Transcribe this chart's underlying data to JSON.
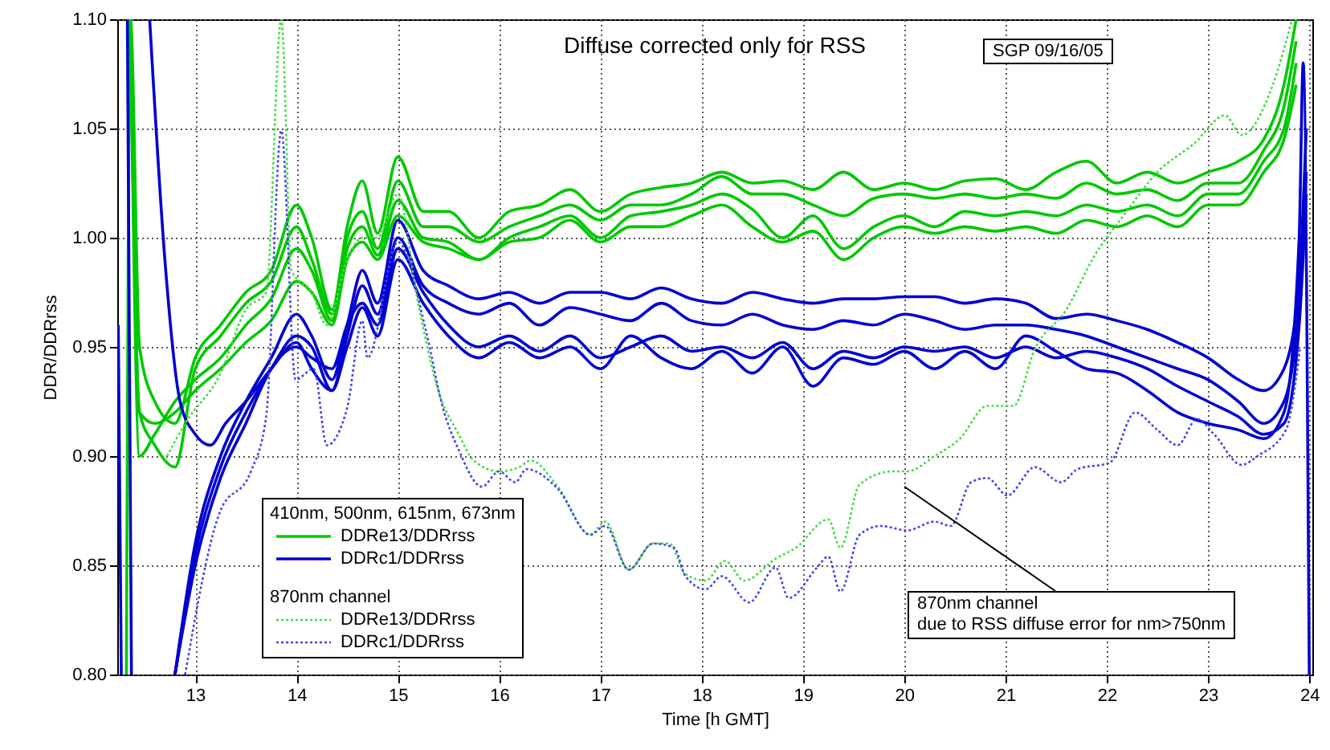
{
  "chart_data": {
    "type": "line",
    "title": "Diffuse corrected only for RSS",
    "xlabel": "Time [h GMT]",
    "ylabel": "DDR/DDRrss",
    "legend_title": "410nm, 500nm, 615nm, 673nm",
    "legend": "bottom left",
    "grid": true,
    "line_style": "solid",
    "marker": "none",
    "xlim": [
      12.23,
      24.03
    ],
    "ylim": [
      0.8,
      1.1
    ],
    "xticks": [
      13,
      14,
      15,
      16,
      17,
      18,
      19,
      20,
      21,
      22,
      23,
      24
    ],
    "yticks": [
      {
        "value": 0.8,
        "label": "0.80"
      },
      {
        "value": 0.85,
        "label": "0.85"
      },
      {
        "value": 0.9,
        "label": "0.90"
      },
      {
        "value": 0.95,
        "label": "0.95"
      },
      {
        "value": 1.0,
        "label": "1.00"
      },
      {
        "value": 1.05,
        "label": "1.05"
      },
      {
        "value": 1.1,
        "label": "1.10"
      }
    ],
    "annotations": [
      "SGP 09/16/05",
      "870nm channel",
      "870nm channel\ndue to RSS diffuse error for nm>750nm"
    ],
    "series": [
      {
        "name": "DDRe13/DDRrss",
        "color": "#00c800",
        "x": [
          12.32,
          12.36,
          12.45,
          12.6,
          12.8,
          13.0,
          13.25,
          13.5,
          13.75,
          14.0,
          14.15,
          14.35,
          14.5,
          14.65,
          14.8,
          15.0,
          15.25,
          15.5,
          15.8,
          16.1,
          16.4,
          16.7,
          17.0,
          17.3,
          17.6,
          17.9,
          18.2,
          18.5,
          18.8,
          19.1,
          19.4,
          19.7,
          20.0,
          20.3,
          20.6,
          20.9,
          21.2,
          21.5,
          21.8,
          22.1,
          22.4,
          22.7,
          23.0,
          23.3,
          23.55,
          23.75,
          23.87
        ],
        "values": [
          0.8,
          1.1,
          0.95,
          0.925,
          0.915,
          0.945,
          0.96,
          0.975,
          0.985,
          1.015,
          1.0,
          0.967,
          1.005,
          1.026,
          1.002,
          1.037,
          1.012,
          1.012,
          1.0,
          1.012,
          1.015,
          1.022,
          1.012,
          1.02,
          1.023,
          1.025,
          1.03,
          1.025,
          1.026,
          1.022,
          1.03,
          1.022,
          1.025,
          1.022,
          1.026,
          1.027,
          1.022,
          1.03,
          1.035,
          1.025,
          1.03,
          1.025,
          1.03,
          1.035,
          1.045,
          1.07,
          1.1
        ]
      },
      {
        "color": "#00c800",
        "x": [
          12.36,
          12.45,
          12.6,
          12.8,
          13.0,
          13.25,
          13.5,
          13.75,
          14.0,
          14.15,
          14.35,
          14.5,
          14.65,
          14.8,
          15.0,
          15.25,
          15.5,
          15.8,
          16.1,
          16.4,
          16.7,
          17.0,
          17.3,
          17.6,
          17.9,
          18.2,
          18.5,
          18.8,
          19.1,
          19.4,
          19.7,
          20.0,
          20.3,
          20.6,
          20.9,
          21.2,
          21.5,
          21.8,
          22.1,
          22.4,
          22.7,
          23.0,
          23.3,
          23.55,
          23.75,
          23.87
        ],
        "values": [
          1.1,
          0.92,
          0.905,
          0.895,
          0.94,
          0.955,
          0.97,
          0.98,
          1.005,
          0.99,
          0.965,
          1.0,
          1.012,
          0.995,
          1.026,
          1.005,
          1.005,
          0.998,
          1.005,
          1.01,
          1.015,
          1.008,
          1.015,
          1.015,
          1.02,
          1.028,
          1.02,
          1.02,
          1.015,
          1.01,
          1.018,
          1.02,
          1.018,
          1.02,
          1.018,
          1.02,
          1.018,
          1.025,
          1.02,
          1.022,
          1.017,
          1.025,
          1.025,
          1.04,
          1.06,
          1.09
        ]
      },
      {
        "color": "#00c800",
        "x": [
          12.36,
          12.45,
          12.6,
          12.8,
          13.0,
          13.25,
          13.5,
          13.75,
          14.0,
          14.15,
          14.35,
          14.5,
          14.65,
          14.8,
          15.0,
          15.25,
          15.5,
          15.8,
          16.1,
          16.4,
          16.7,
          17.0,
          17.3,
          17.6,
          17.9,
          18.2,
          18.5,
          18.8,
          19.1,
          19.4,
          19.7,
          20.0,
          20.3,
          20.6,
          20.9,
          21.2,
          21.5,
          21.8,
          22.1,
          22.4,
          22.7,
          23.0,
          23.3,
          23.55,
          23.75,
          23.87
        ],
        "values": [
          1.1,
          0.9,
          0.91,
          0.925,
          0.935,
          0.945,
          0.96,
          0.972,
          0.995,
          0.985,
          0.962,
          0.995,
          1.005,
          0.992,
          1.017,
          1.0,
          0.998,
          0.99,
          1.0,
          1.005,
          1.01,
          1.0,
          1.01,
          1.012,
          1.015,
          1.02,
          1.013,
          1.0,
          1.01,
          0.995,
          1.005,
          1.01,
          1.005,
          1.012,
          1.01,
          1.012,
          1.01,
          1.015,
          1.012,
          1.015,
          1.01,
          1.02,
          1.02,
          1.035,
          1.05,
          1.08
        ]
      },
      {
        "color": "#00c800",
        "x": [
          12.36,
          12.45,
          12.6,
          12.8,
          13.0,
          13.25,
          13.5,
          13.75,
          14.0,
          14.15,
          14.35,
          14.5,
          14.65,
          14.8,
          15.0,
          15.25,
          15.5,
          15.8,
          16.1,
          16.4,
          16.7,
          17.0,
          17.3,
          17.6,
          17.9,
          18.2,
          18.5,
          18.8,
          19.1,
          19.4,
          19.7,
          20.0,
          20.3,
          20.6,
          20.9,
          21.2,
          21.5,
          21.8,
          22.1,
          22.4,
          22.7,
          23.0,
          23.3,
          23.55,
          23.75,
          23.87
        ],
        "values": [
          1.1,
          0.92,
          0.915,
          0.92,
          0.93,
          0.94,
          0.952,
          0.962,
          0.98,
          0.975,
          0.96,
          0.99,
          0.998,
          0.99,
          1.01,
          0.998,
          0.995,
          0.99,
          0.998,
          1.0,
          1.008,
          0.998,
          1.005,
          1.005,
          1.01,
          1.015,
          1.005,
          0.998,
          1.003,
          0.99,
          1.0,
          1.005,
          1.002,
          1.005,
          1.003,
          1.005,
          1.002,
          1.008,
          1.005,
          1.01,
          1.005,
          1.015,
          1.015,
          1.03,
          1.045,
          1.07
        ]
      },
      {
        "name": "DDRc1/DDRrss",
        "color": "#0000d0",
        "x": [
          12.24,
          12.27,
          12.5,
          12.8,
          13.0,
          13.25,
          13.5,
          13.75,
          14.0,
          14.15,
          14.35,
          14.5,
          14.65,
          14.8,
          15.0,
          15.25,
          15.5,
          15.8,
          16.1,
          16.4,
          16.7,
          17.0,
          17.3,
          17.6,
          17.9,
          18.2,
          18.5,
          18.8,
          19.1,
          19.4,
          19.7,
          20.0,
          20.3,
          20.6,
          20.9,
          21.2,
          21.5,
          21.8,
          22.1,
          22.4,
          22.7,
          23.0,
          23.3,
          23.55,
          23.75,
          23.9,
          23.97
        ],
        "values": [
          0.96,
          0.8,
          null,
          0.8,
          0.86,
          0.9,
          0.925,
          0.945,
          0.965,
          0.955,
          0.935,
          0.96,
          0.985,
          0.97,
          1.008,
          0.985,
          0.978,
          0.972,
          0.975,
          0.97,
          0.975,
          0.975,
          0.972,
          0.977,
          0.972,
          0.97,
          0.975,
          0.972,
          0.97,
          0.972,
          0.972,
          0.973,
          0.973,
          0.97,
          0.972,
          0.97,
          0.963,
          0.965,
          0.962,
          0.958,
          0.952,
          0.945,
          0.935,
          0.93,
          0.94,
          0.98,
          1.05
        ]
      },
      {
        "color": "#0000d0",
        "x": [
          12.33,
          12.37,
          12.5,
          12.8,
          13.0,
          13.25,
          13.5,
          13.75,
          14.0,
          14.15,
          14.35,
          14.5,
          14.65,
          14.8,
          15.0,
          15.25,
          15.5,
          15.8,
          16.1,
          16.4,
          16.7,
          17.0,
          17.3,
          17.6,
          17.9,
          18.2,
          18.5,
          18.8,
          19.1,
          19.4,
          19.7,
          20.0,
          20.3,
          20.6,
          20.9,
          21.2,
          21.5,
          21.8,
          22.1,
          22.4,
          22.7,
          23.0,
          23.3,
          23.55,
          23.75,
          23.9,
          23.97
        ],
        "values": [
          1.1,
          0.8,
          null,
          0.8,
          0.855,
          0.895,
          0.92,
          0.94,
          0.955,
          0.95,
          0.93,
          0.955,
          0.978,
          0.965,
          1.0,
          0.978,
          0.97,
          0.965,
          0.97,
          0.96,
          0.968,
          0.965,
          0.962,
          0.97,
          0.962,
          0.96,
          0.965,
          0.96,
          0.958,
          0.962,
          0.96,
          0.965,
          0.962,
          0.958,
          0.96,
          0.96,
          0.958,
          0.955,
          0.95,
          0.945,
          0.94,
          0.935,
          0.925,
          0.915,
          0.925,
          0.97,
          1.03
        ]
      },
      {
        "color": "#0000d0",
        "x": [
          12.8,
          13.0,
          13.25,
          13.5,
          13.75,
          14.0,
          14.15,
          14.35,
          14.5,
          14.65,
          14.8,
          15.0,
          15.25,
          15.5,
          15.8,
          16.1,
          16.4,
          16.7,
          17.0,
          17.3,
          17.6,
          17.9,
          18.2,
          18.5,
          18.8,
          19.1,
          19.4,
          19.7,
          20.0,
          20.3,
          20.6,
          20.9,
          21.2,
          21.5,
          21.8,
          22.1,
          22.4,
          22.7,
          23.0,
          23.3,
          23.55,
          23.75,
          23.9,
          23.97
        ],
        "values": [
          0.8,
          0.85,
          0.89,
          0.915,
          0.94,
          0.95,
          0.945,
          0.94,
          0.96,
          0.97,
          0.96,
          0.995,
          0.975,
          0.96,
          0.95,
          0.955,
          0.948,
          0.955,
          0.945,
          0.95,
          0.955,
          0.948,
          0.95,
          0.945,
          0.952,
          0.94,
          0.948,
          0.945,
          0.95,
          0.948,
          0.95,
          0.945,
          0.95,
          0.945,
          0.948,
          0.945,
          0.94,
          0.932,
          0.925,
          0.918,
          0.91,
          0.915,
          0.96,
          1.02
        ]
      },
      {
        "color": "#0000d0",
        "x": [
          12.55,
          12.7,
          12.85,
          13.0,
          13.15,
          13.3,
          13.5,
          13.75,
          14.0,
          14.15,
          14.35,
          14.5,
          14.65,
          14.8,
          15.0,
          15.25,
          15.5,
          15.8,
          16.1,
          16.4,
          16.7,
          17.0,
          17.3,
          17.6,
          17.9,
          18.2,
          18.5,
          18.8,
          19.1,
          19.4,
          19.7,
          20.0,
          20.3,
          20.6,
          20.9,
          21.2,
          21.5,
          21.8,
          22.1,
          22.4,
          22.7,
          23.0,
          23.3,
          23.55,
          23.75,
          23.9,
          23.94,
          24.0
        ],
        "values": [
          1.1,
          0.99,
          0.925,
          0.91,
          0.905,
          0.915,
          0.925,
          0.94,
          0.952,
          0.94,
          0.93,
          0.95,
          0.968,
          0.955,
          0.99,
          0.97,
          0.955,
          0.945,
          0.952,
          0.945,
          0.95,
          0.94,
          0.955,
          0.945,
          0.94,
          0.948,
          0.938,
          0.95,
          0.932,
          0.945,
          0.942,
          0.948,
          0.94,
          0.948,
          0.94,
          0.955,
          0.948,
          0.94,
          0.938,
          0.93,
          0.92,
          0.915,
          0.912,
          0.908,
          0.92,
          1.0,
          1.08,
          0.8
        ]
      },
      {
        "name": "DDRe13/DDRrss",
        "color": "#44dd44",
        "line_style": "dotted",
        "x": [
          12.7,
          12.9,
          13.24,
          13.5,
          13.7,
          13.85,
          13.95,
          14.15,
          14.3,
          14.5,
          14.65,
          14.8,
          15.0,
          15.2,
          15.4,
          15.6,
          15.75,
          16.0,
          16.2,
          16.31,
          16.58,
          16.9,
          17.05,
          17.28,
          17.52,
          17.68,
          17.84,
          18.04,
          18.23,
          18.42,
          18.73,
          18.93,
          19.25,
          19.37,
          19.56,
          19.88,
          20.03,
          20.3,
          20.55,
          20.82,
          21.08,
          21.29,
          21.6,
          21.87,
          22.18,
          22.5,
          22.86,
          23.17,
          23.33,
          23.64,
          23.83
        ],
        "values": [
          0.898,
          0.915,
          0.937,
          0.967,
          0.975,
          1.1,
          0.985,
          0.975,
          0.96,
          0.99,
          1.0,
          1.0,
          1.02,
          0.97,
          0.93,
          0.91,
          0.898,
          0.893,
          0.895,
          0.898,
          0.886,
          0.864,
          0.87,
          0.848,
          0.86,
          0.86,
          0.846,
          0.843,
          0.852,
          0.843,
          0.853,
          0.858,
          0.871,
          0.858,
          0.887,
          0.893,
          0.893,
          0.9,
          0.908,
          0.923,
          0.923,
          0.949,
          0.967,
          0.991,
          1.011,
          1.03,
          1.043,
          1.056,
          1.047,
          1.07,
          1.1
        ]
      },
      {
        "name": "DDRc1/DDRrss",
        "color": "#4444ee",
        "line_style": "dotted",
        "x": [
          12.9,
          13.24,
          13.55,
          13.7,
          13.85,
          13.99,
          14.17,
          14.3,
          14.5,
          14.65,
          14.7,
          15.0,
          15.28,
          15.44,
          15.6,
          15.83,
          16.0,
          16.16,
          16.27,
          16.58,
          16.9,
          17.05,
          17.28,
          17.52,
          17.73,
          17.84,
          18.04,
          18.2,
          18.47,
          18.73,
          18.86,
          19.14,
          19.25,
          19.37,
          19.56,
          19.77,
          20.03,
          20.3,
          20.46,
          20.66,
          20.82,
          21.02,
          21.29,
          21.55,
          21.71,
          22.03,
          22.28,
          22.5,
          22.7,
          22.89,
          23.06,
          23.33,
          23.49,
          23.77,
          23.91
        ],
        "values": [
          0.8,
          0.874,
          0.893,
          0.918,
          1.049,
          0.935,
          0.94,
          0.905,
          0.922,
          0.962,
          0.945,
          0.998,
          0.957,
          0.923,
          0.903,
          0.886,
          0.893,
          0.888,
          0.894,
          0.885,
          0.864,
          0.868,
          0.848,
          0.86,
          0.858,
          0.845,
          0.839,
          0.845,
          0.833,
          0.849,
          0.835,
          0.849,
          0.854,
          0.838,
          0.864,
          0.868,
          0.866,
          0.87,
          0.868,
          0.888,
          0.89,
          0.882,
          0.895,
          0.888,
          0.894,
          0.897,
          0.92,
          0.912,
          0.905,
          0.917,
          0.91,
          0.896,
          0.9,
          0.912,
          0.95
        ]
      }
    ]
  }
}
